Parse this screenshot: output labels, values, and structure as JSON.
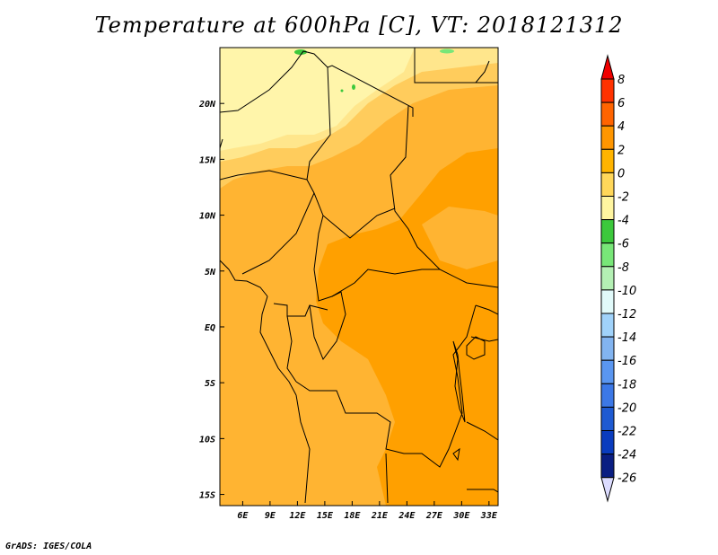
{
  "title": "Temperature at 600hPa [C], VT: 2018121312",
  "credit": "GrADS: IGES/COLA",
  "map": {
    "lon_range": [
      3.5,
      34
    ],
    "lat_range": [
      -16,
      25
    ],
    "lon_ticks": [
      6,
      9,
      12,
      15,
      18,
      21,
      24,
      27,
      30,
      33
    ],
    "lon_tick_labels": [
      "6E",
      "9E",
      "12E",
      "15E",
      "18E",
      "21E",
      "24E",
      "27E",
      "30E",
      "33E"
    ],
    "lat_ticks": [
      20,
      15,
      10,
      5,
      0,
      -5,
      -10,
      -15
    ],
    "lat_tick_labels": [
      "20N",
      "15N",
      "10N",
      "5N",
      "EQ",
      "5S",
      "10S",
      "15S"
    ]
  },
  "colorbar": {
    "levels": [
      "8",
      "6",
      "4",
      "2",
      "0",
      "-2",
      "-4",
      "-6",
      "-8",
      "-10",
      "-12",
      "-14",
      "-16",
      "-18",
      "-20",
      "-22",
      "-24",
      "-26"
    ],
    "colors": [
      "#f00000",
      "#ff3200",
      "#ff6400",
      "#ff9600",
      "#ffb400",
      "#ffd75a",
      "#fff5a0",
      "#3cc83c",
      "#78e678",
      "#b4f0b4",
      "#e1fafa",
      "#a0d2fa",
      "#82b4f0",
      "#5a96f0",
      "#3c78e6",
      "#1e5ad2",
      "#0a3cbe",
      "#0a1e82",
      "#dcdcff"
    ]
  }
}
